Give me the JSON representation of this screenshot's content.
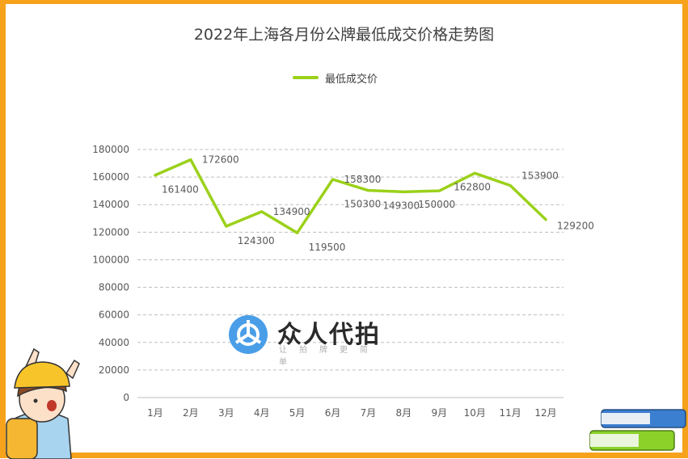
{
  "chart_data": {
    "type": "line",
    "title": "2022年上海各月份公牌最低成交价格走势图",
    "categories": [
      "1月",
      "2月",
      "3月",
      "4月",
      "5月",
      "6月",
      "7月",
      "8月",
      "9月",
      "10月",
      "11月",
      "12月"
    ],
    "series": [
      {
        "name": "最低成交价",
        "values": [
          161400,
          172600,
          124300,
          134900,
          119500,
          158300,
          150300,
          149300,
          150000,
          162800,
          153900,
          129200
        ],
        "color": "#9bd11a"
      }
    ],
    "ylim": [
      0,
      180000
    ],
    "yticks": [
      0,
      20000,
      40000,
      60000,
      80000,
      100000,
      120000,
      140000,
      160000,
      180000
    ],
    "grid": true,
    "legend": "top-center"
  },
  "watermark": {
    "brand": "众人代拍",
    "tagline": "让拍牌更简单"
  },
  "colors": {
    "frame": "#f7a21b",
    "line": "#9bd11a",
    "grid": "#bfbfbf",
    "text": "#595959"
  }
}
